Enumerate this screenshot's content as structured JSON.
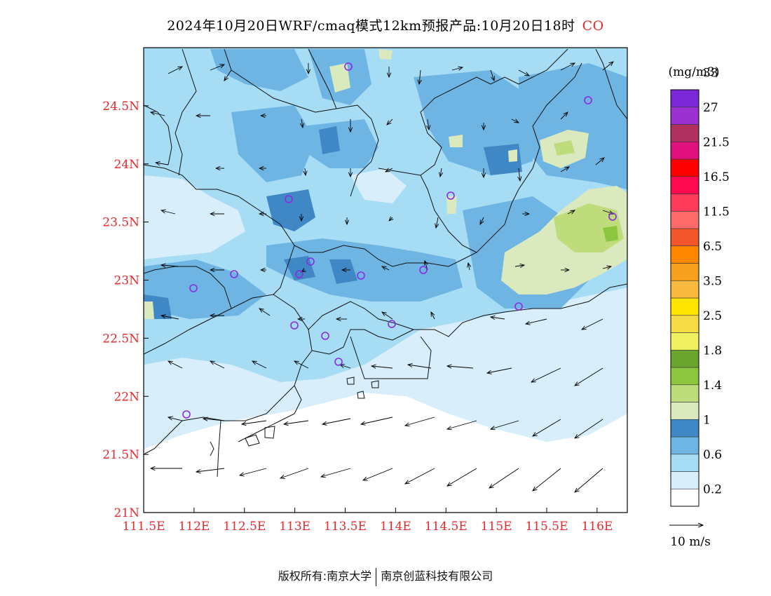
{
  "title": {
    "main": "2024年10月20日WRF/cmaq模式12km预报产品:10月20日18时",
    "species": "CO",
    "species_color": "#e8292b"
  },
  "map": {
    "lon_labels": [
      "111.5E",
      "112E",
      "112.5E",
      "113E",
      "113.5E",
      "114E",
      "114.5E",
      "115E",
      "115.5E",
      "116E"
    ],
    "lat_labels": [
      "24.5N",
      "24N",
      "23.5N",
      "23N",
      "22.5N",
      "22N",
      "21.5N",
      "21N"
    ],
    "lon_min": 111.5,
    "lon_max": 116.3,
    "lat_min": 21.0,
    "lat_max": 25.0,
    "axis_label_color": "#e8292b",
    "station_color": "#8a2be2"
  },
  "colorbar": {
    "unit": "(mg/m3)",
    "colors": [
      "#ffffff",
      "#d8eefb",
      "#a6dcf4",
      "#6eb5e3",
      "#3f88c5",
      "#dbe9bf",
      "#bedc7c",
      "#8cc63f",
      "#6aa52f",
      "#f0f060",
      "#f5dc44",
      "#ffe400",
      "#f9b840",
      "#f7a01e",
      "#ff8800",
      "#f2562a",
      "#ff6b6b",
      "#ff3b5c",
      "#ff0a52",
      "#ff0000",
      "#e0117f",
      "#b03060",
      "#9b30d0",
      "#7b28d8"
    ],
    "labels": [
      "0.2",
      "0.6",
      "1",
      "1.4",
      "1.8",
      "2.5",
      "3.5",
      "6.5",
      "11.5",
      "16.5",
      "21.5",
      "27",
      "33"
    ]
  },
  "wind_legend": {
    "label": "10 m/s"
  },
  "footer": {
    "left": "版权所有:南京大学",
    "right": "南京创蓝科技有限公司"
  }
}
